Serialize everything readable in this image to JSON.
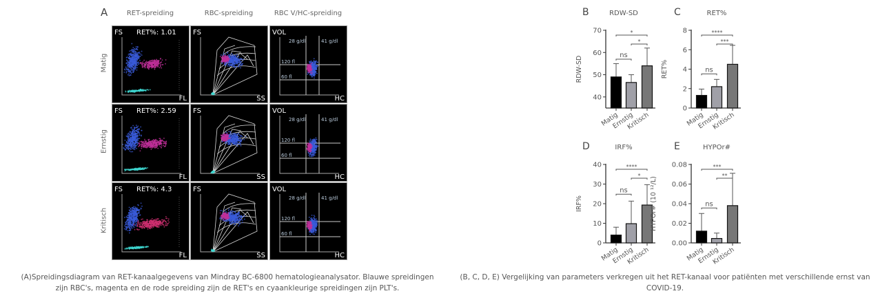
{
  "panel_a": {
    "letter": "A",
    "columns": [
      "RET-spreiding",
      "RBC-spreiding",
      "RBC V/HC-spreiding"
    ],
    "rows": [
      {
        "label": "Matig",
        "ret": "RET%: 1.01"
      },
      {
        "label": "Ernstig",
        "ret": "RET%: 2.59"
      },
      {
        "label": "Kritisch",
        "ret": "RET%: 4.3"
      }
    ],
    "axis_labels": {
      "ret": [
        "FS",
        "FL"
      ],
      "rbc": [
        "FS",
        "SS"
      ],
      "vhc": [
        "VOL",
        "HC"
      ]
    },
    "vhc_lines": [
      "28 g/dl",
      "41 g/dl",
      "120 fl",
      "60 fl"
    ],
    "colors": {
      "rbc": "#3a5bd9",
      "ret": "#c0309a",
      "plt": "#3fd6d0"
    }
  },
  "caption_left": "(A)Spreidingsdiagram van RET-kanaalgegevens van Mindray BC-6800 hematologieanalysator. Blauwe spreidingen zijn RBC's, magenta en de rode spreiding zijn de RET's en cyaankleurige spreidingen zijn PLT's.",
  "caption_right": "(B, C, D, E) Vergelijking van parameters verkregen uit het RET-kanaal voor patiënten met verschillende ernst van COVID-19.",
  "chart_data": [
    {
      "letter": "B",
      "type": "bar",
      "title": "RDW-SD",
      "ylabel": "RDW-SD",
      "categories": [
        "Matig",
        "Ernstig",
        "Kritisch"
      ],
      "values": [
        49,
        46.5,
        54
      ],
      "error_upper": [
        55,
        50,
        62
      ],
      "ylim": [
        35,
        70
      ],
      "ticks": [
        40,
        50,
        60,
        70
      ],
      "tick_labels": [
        "40",
        "50",
        "60",
        "70"
      ],
      "colors": [
        "#000000",
        "#a0a0a8",
        "#777777"
      ],
      "significance": [
        {
          "pair": [
            0,
            2
          ],
          "label": "*"
        },
        {
          "pair": [
            1,
            2
          ],
          "label": "*"
        },
        {
          "pair": [
            0,
            1
          ],
          "label": "ns"
        }
      ]
    },
    {
      "letter": "C",
      "type": "bar",
      "title": "RET%",
      "ylabel": "RET%",
      "categories": [
        "Matig",
        "Ernstig",
        "Kritisch"
      ],
      "values": [
        1.3,
        2.2,
        4.5
      ],
      "error_upper": [
        1.95,
        2.95,
        6.45
      ],
      "ylim": [
        0,
        8
      ],
      "ticks": [
        0,
        2,
        4,
        6,
        8
      ],
      "tick_labels": [
        "0",
        "2",
        "4",
        "6",
        "8"
      ],
      "colors": [
        "#000000",
        "#a0a0a8",
        "#777777"
      ],
      "significance": [
        {
          "pair": [
            0,
            2
          ],
          "label": "****"
        },
        {
          "pair": [
            1,
            2
          ],
          "label": "***"
        },
        {
          "pair": [
            0,
            1
          ],
          "label": "ns"
        }
      ]
    },
    {
      "letter": "D",
      "type": "bar",
      "title": "IRF%",
      "ylabel": "IRF%",
      "categories": [
        "Matig",
        "Ernstig",
        "Kritisch"
      ],
      "values": [
        4,
        9.8,
        19.3
      ],
      "error_upper": [
        8,
        21.3,
        29.7
      ],
      "ylim": [
        0,
        40
      ],
      "ticks": [
        0,
        10,
        20,
        30,
        40
      ],
      "tick_labels": [
        "0",
        "10",
        "20",
        "30",
        "40"
      ],
      "colors": [
        "#000000",
        "#a0a0a8",
        "#777777"
      ],
      "significance": [
        {
          "pair": [
            0,
            2
          ],
          "label": "****"
        },
        {
          "pair": [
            1,
            2
          ],
          "label": "*"
        },
        {
          "pair": [
            0,
            1
          ],
          "label": "ns"
        }
      ]
    },
    {
      "letter": "E",
      "type": "bar",
      "title": "HYPOr#",
      "ylabel": "HYPOr# (10 ¹²/L)",
      "categories": [
        "Matig",
        "Ernstig",
        "Kritisch"
      ],
      "values": [
        0.012,
        0.0045,
        0.038
      ],
      "error_upper": [
        0.03,
        0.01,
        0.071
      ],
      "ylim": [
        0,
        0.08
      ],
      "ticks": [
        0,
        0.02,
        0.04,
        0.06,
        0.08
      ],
      "tick_labels": [
        "0.00",
        "0.02",
        "0.04",
        "0.06",
        "0.08"
      ],
      "colors": [
        "#000000",
        "#a0a0a8",
        "#777777"
      ],
      "significance": [
        {
          "pair": [
            0,
            2
          ],
          "label": "***"
        },
        {
          "pair": [
            1,
            2
          ],
          "label": "**"
        },
        {
          "pair": [
            0,
            1
          ],
          "label": "ns"
        }
      ]
    }
  ]
}
